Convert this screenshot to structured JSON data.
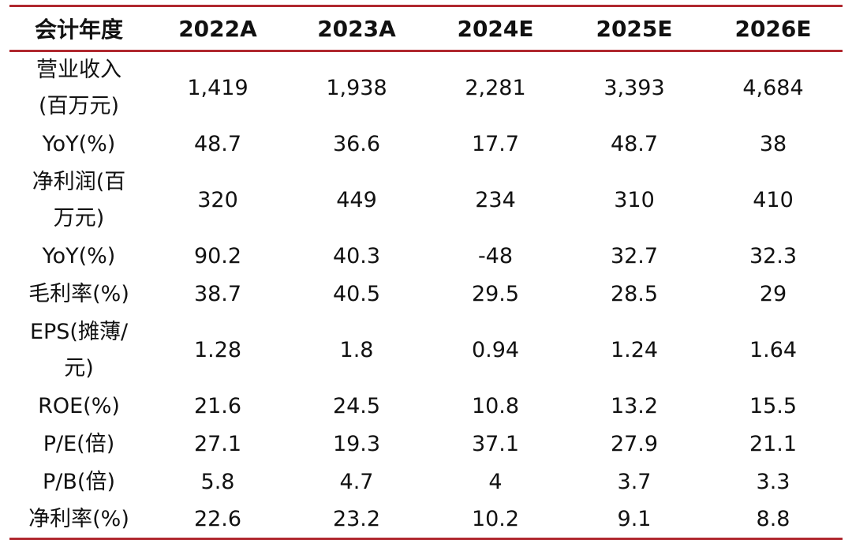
{
  "table": {
    "header": [
      "会计年度",
      "2022A",
      "2023A",
      "2024E",
      "2025E",
      "2026E"
    ],
    "rows": [
      {
        "label": [
          "营业收入",
          "(百万元)"
        ],
        "values": [
          "1,419",
          "1,938",
          "2,281",
          "3,393",
          "4,684"
        ]
      },
      {
        "label": [
          "YoY(%)"
        ],
        "values": [
          "48.7",
          "36.6",
          "17.7",
          "48.7",
          "38"
        ]
      },
      {
        "label": [
          "净利润(百",
          "万元)"
        ],
        "values": [
          "320",
          "449",
          "234",
          "310",
          "410"
        ]
      },
      {
        "label": [
          "YoY(%)"
        ],
        "values": [
          "90.2",
          "40.3",
          "-48",
          "32.7",
          "32.3"
        ]
      },
      {
        "label": [
          "毛利率(%)"
        ],
        "values": [
          "38.7",
          "40.5",
          "29.5",
          "28.5",
          "29"
        ]
      },
      {
        "label": [
          "EPS(摊薄/",
          "元)"
        ],
        "values": [
          "1.28",
          "1.8",
          "0.94",
          "1.24",
          "1.64"
        ]
      },
      {
        "label": [
          "ROE(%)"
        ],
        "values": [
          "21.6",
          "24.5",
          "10.8",
          "13.2",
          "15.5"
        ]
      },
      {
        "label": [
          "P/E(倍)"
        ],
        "values": [
          "27.1",
          "19.3",
          "37.1",
          "27.9",
          "21.1"
        ]
      },
      {
        "label": [
          "P/B(倍)"
        ],
        "values": [
          "5.8",
          "4.7",
          "4",
          "3.7",
          "3.3"
        ]
      },
      {
        "label": [
          "净利率(%)"
        ],
        "values": [
          "22.6",
          "23.2",
          "10.2",
          "9.1",
          "8.8"
        ]
      }
    ]
  },
  "colors": {
    "rule": "#b0282f",
    "text": "#111111"
  }
}
